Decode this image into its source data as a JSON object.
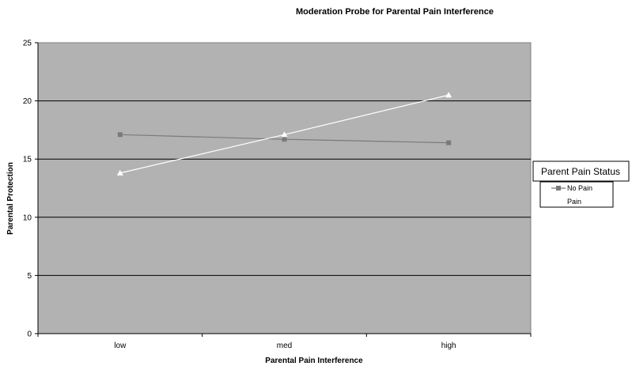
{
  "chart_data": {
    "type": "line",
    "title": "Moderation Probe for Parental Pain Interference",
    "xlabel": "Parental Pain Interference",
    "ylabel": "Parental Protection",
    "categories": [
      "low",
      "med",
      "high"
    ],
    "ylim": [
      0,
      25
    ],
    "yticks": [
      0,
      5,
      10,
      15,
      20,
      25
    ],
    "grid": true,
    "legend": {
      "title": "Parent Pain Status",
      "placement": "right"
    },
    "series": [
      {
        "name": "No Pain",
        "values": [
          17.1,
          16.7,
          16.4
        ],
        "marker": "square",
        "color": "#7a7a7a"
      },
      {
        "name": "Pain",
        "values": [
          13.8,
          17.1,
          20.5
        ],
        "marker": "triangle",
        "color": "#ffffff"
      }
    ],
    "plot_background": "#b2b2b2"
  }
}
